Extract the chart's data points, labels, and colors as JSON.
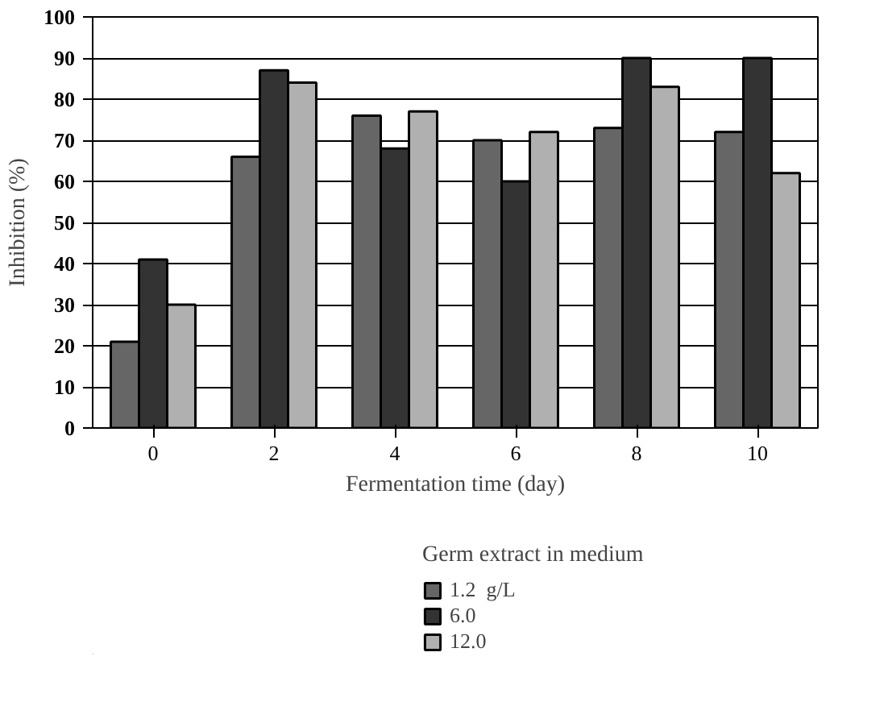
{
  "chart_data": {
    "type": "bar",
    "xlabel": "Fermentation time (day)",
    "ylabel": "Inhibition (%)",
    "legend_title": "Germ extract in medium",
    "categories": [
      "0",
      "2",
      "4",
      "6",
      "8",
      "10"
    ],
    "series": [
      {
        "name": "1.2  g/L",
        "color": "#666666",
        "values": [
          21,
          66,
          76,
          70,
          73,
          72
        ]
      },
      {
        "name": "6.0",
        "color": "#333333",
        "values": [
          41,
          87,
          68,
          60,
          90,
          90
        ]
      },
      {
        "name": "12.0",
        "color": "#b0b0b0",
        "values": [
          30,
          84,
          77,
          72,
          83,
          62
        ]
      }
    ],
    "ylim": [
      0,
      100
    ],
    "yticks": [
      0,
      10,
      20,
      30,
      40,
      50,
      60,
      70,
      80,
      90,
      100
    ],
    "grid": "y",
    "legend": "bottom"
  }
}
